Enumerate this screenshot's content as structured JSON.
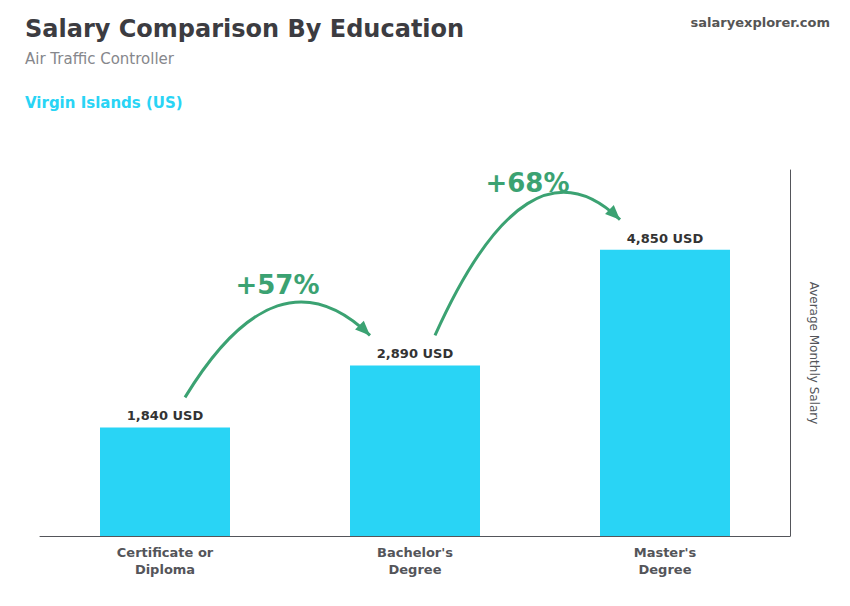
{
  "chart_data": {
    "type": "bar",
    "title": "Salary Comparison By Education",
    "subtitle": "Air Traffic Controller",
    "region": "Virgin Islands (US)",
    "website": "salaryexplorer.com",
    "categories": [
      "Certificate or\nDiploma",
      "Bachelor's\nDegree",
      "Master's\nDegree"
    ],
    "values": [
      1840,
      2890,
      4850
    ],
    "value_labels": [
      "1,840 USD",
      "2,890 USD",
      "4,850 USD"
    ],
    "data_labels": true,
    "color": "#29d4f5",
    "ylabel": "Average Monthly Salary",
    "ylim": [
      0,
      6200
    ],
    "tick_labels": "x",
    "grid": false,
    "annotations": [
      {
        "text": "+57%",
        "from": 0,
        "to": 1
      },
      {
        "text": "+68%",
        "from": 1,
        "to": 2
      }
    ]
  }
}
